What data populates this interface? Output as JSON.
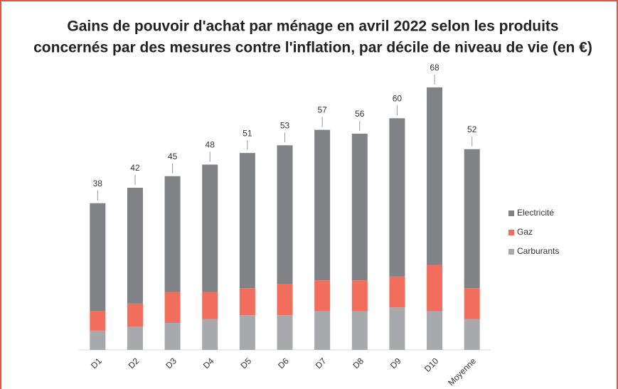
{
  "chart_data": {
    "type": "stacked_bar",
    "title": "Gains de pouvoir d'achat par ménage en avril 2022 selon les produits",
    "subtitle": "concernés par des mesures contre l'inflation, par décile de niveau de vie (en €)",
    "categories": [
      "D1",
      "D2",
      "D3",
      "D4",
      "D5",
      "D6",
      "D7",
      "D8",
      "D9",
      "D10",
      "Moyenne"
    ],
    "series": [
      {
        "name": "Carburants",
        "color": "#a7a9ac",
        "values": [
          5,
          6,
          7,
          8,
          9,
          9,
          10,
          10,
          11,
          10,
          8
        ]
      },
      {
        "name": "Gaz",
        "color": "#f26d5b",
        "values": [
          5,
          6,
          8,
          7,
          7,
          8,
          8,
          8,
          8,
          12,
          8
        ]
      },
      {
        "name": "Electricité",
        "color": "#808285",
        "values": [
          28,
          30,
          30,
          33,
          35,
          36,
          39,
          38,
          41,
          46,
          36
        ]
      }
    ],
    "totals": [
      38,
      42,
      45,
      48,
      51,
      53,
      57,
      56,
      60,
      68,
      52
    ],
    "ylim": [
      0,
      70
    ],
    "legend": "right"
  }
}
